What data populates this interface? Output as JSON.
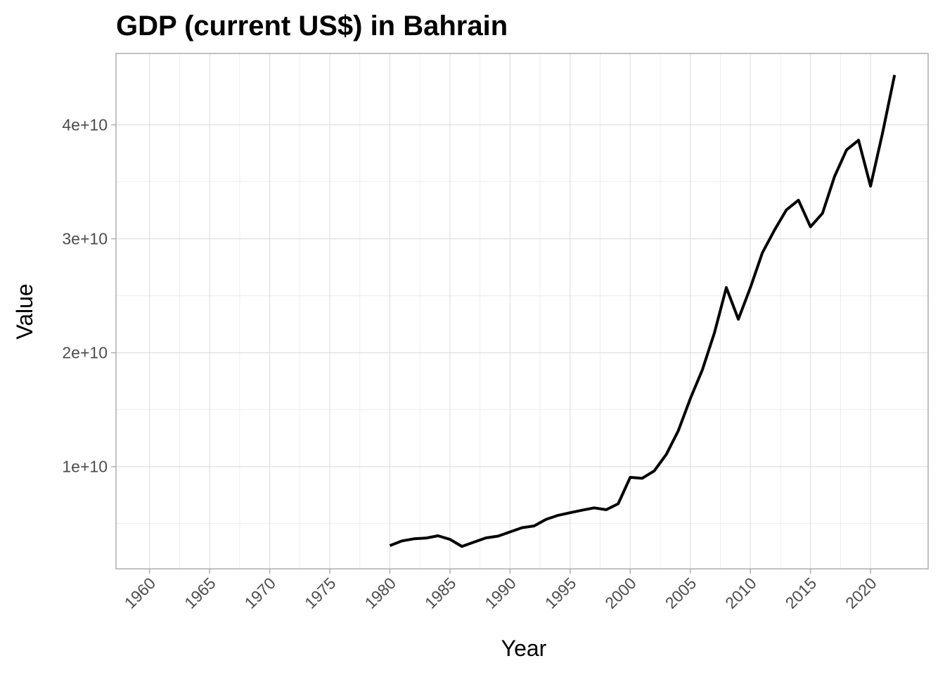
{
  "chart_data": {
    "type": "line",
    "title": "GDP (current US$) in Bahrain",
    "xlabel": "Year",
    "ylabel": "Value",
    "xlim": [
      1960,
      2022
    ],
    "ylim": [
      2900000000,
      44400000000
    ],
    "x_ticks": [
      1960,
      1965,
      1970,
      1975,
      1980,
      1985,
      1990,
      1995,
      2000,
      2005,
      2010,
      2015,
      2020
    ],
    "x_tick_labels": [
      "1960",
      "1965",
      "1970",
      "1975",
      "1980",
      "1985",
      "1990",
      "1995",
      "2000",
      "2005",
      "2010",
      "2015",
      "2020"
    ],
    "y_ticks": [
      10000000000,
      20000000000,
      30000000000,
      40000000000
    ],
    "y_tick_labels": [
      "1e+10",
      "2e+10",
      "3e+10",
      "4e+10"
    ],
    "grid": true,
    "legend": "none",
    "line_color": "#000000",
    "series": [
      {
        "x": [
          1980,
          1981,
          1982,
          1983,
          1984,
          1985,
          1986,
          1987,
          1988,
          1989,
          1990,
          1991,
          1992,
          1993,
          1994,
          1995,
          1996,
          1997,
          1998,
          1999,
          2000,
          2001,
          2002,
          2003,
          2004,
          2005,
          2006,
          2007,
          2008,
          2009,
          2010,
          2011,
          2012,
          2013,
          2014,
          2015,
          2016,
          2017,
          2018,
          2019,
          2020,
          2021,
          2022
        ],
        "values": [
          3070000000,
          3480000000,
          3670000000,
          3730000000,
          3930000000,
          3620000000,
          3000000000,
          3380000000,
          3750000000,
          3900000000,
          4270000000,
          4640000000,
          4800000000,
          5380000000,
          5730000000,
          5960000000,
          6180000000,
          6380000000,
          6220000000,
          6740000000,
          9060000000,
          8980000000,
          9630000000,
          11070000000,
          13150000000,
          15970000000,
          18500000000,
          21730000000,
          25710000000,
          22940000000,
          25710000000,
          28780000000,
          30750000000,
          32540000000,
          33390000000,
          31050000000,
          32240000000,
          35470000000,
          37800000000,
          38650000000,
          34620000000,
          39290000000,
          44380000000
        ]
      }
    ]
  }
}
